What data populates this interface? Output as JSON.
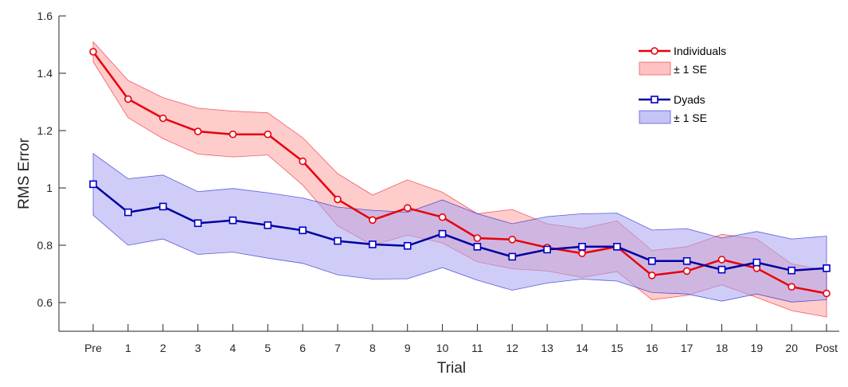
{
  "chart_data": {
    "type": "line",
    "xlabel": "Trial",
    "ylabel": "RMS Error",
    "categories": [
      "Pre",
      "1",
      "2",
      "3",
      "4",
      "5",
      "6",
      "7",
      "8",
      "9",
      "10",
      "11",
      "12",
      "13",
      "14",
      "15",
      "16",
      "17",
      "18",
      "19",
      "20",
      "Post"
    ],
    "ylim": [
      0.5,
      1.6
    ],
    "yticks": [
      0.6,
      0.8,
      1.0,
      1.2,
      1.4,
      1.6
    ],
    "ytick_labels": [
      "0.6",
      "0.8",
      "1",
      "1.2",
      "1.4",
      "1.6"
    ],
    "grid": false,
    "legend_position": "top-right",
    "series": [
      {
        "name": "Individuals",
        "color": "#e8000b",
        "line_color": "#e8000b",
        "marker": "circle",
        "values": [
          1.475,
          1.31,
          1.243,
          1.197,
          1.187,
          1.187,
          1.093,
          0.96,
          0.888,
          0.93,
          0.898,
          0.825,
          0.82,
          0.792,
          0.772,
          0.795,
          0.695,
          0.71,
          0.75,
          0.72,
          0.655,
          0.632
        ],
        "band_label": "± 1 SE",
        "band_color": "#ff9a9a",
        "band_upper": [
          1.51,
          1.375,
          1.315,
          1.278,
          1.268,
          1.262,
          1.175,
          1.05,
          0.975,
          1.028,
          0.985,
          0.91,
          0.925,
          0.875,
          0.858,
          0.885,
          0.782,
          0.795,
          0.838,
          0.822,
          0.735,
          0.712
        ],
        "band_lower": [
          1.44,
          1.245,
          1.172,
          1.118,
          1.108,
          1.115,
          1.01,
          0.868,
          0.8,
          0.835,
          0.808,
          0.742,
          0.718,
          0.71,
          0.688,
          0.708,
          0.61,
          0.625,
          0.662,
          0.618,
          0.572,
          0.55
        ]
      },
      {
        "name": "Dyads",
        "color": "#0000c8",
        "line_color": "#0000a0",
        "marker": "square",
        "values": [
          1.013,
          0.915,
          0.935,
          0.877,
          0.887,
          0.87,
          0.852,
          0.815,
          0.803,
          0.798,
          0.84,
          0.795,
          0.76,
          0.785,
          0.795,
          0.795,
          0.745,
          0.745,
          0.715,
          0.74,
          0.712,
          0.72
        ],
        "band_label": "± 1 SE",
        "band_color": "#a8a4f0",
        "band_upper": [
          1.12,
          1.032,
          1.045,
          0.987,
          0.998,
          0.983,
          0.965,
          0.933,
          0.922,
          0.915,
          0.958,
          0.91,
          0.875,
          0.9,
          0.91,
          0.912,
          0.853,
          0.858,
          0.825,
          0.848,
          0.822,
          0.832
        ],
        "band_lower": [
          0.905,
          0.8,
          0.822,
          0.768,
          0.776,
          0.755,
          0.737,
          0.697,
          0.682,
          0.683,
          0.722,
          0.678,
          0.643,
          0.668,
          0.682,
          0.675,
          0.635,
          0.63,
          0.605,
          0.63,
          0.602,
          0.61
        ]
      }
    ]
  }
}
